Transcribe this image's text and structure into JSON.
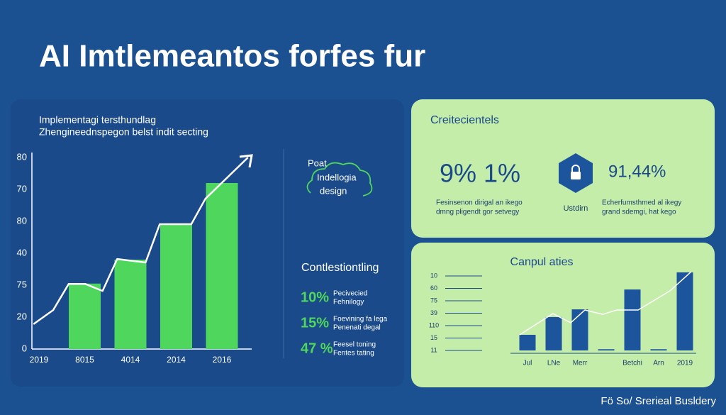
{
  "title": "AI Imtlemeantos forfes fur",
  "chart_data": [
    {
      "type": "bar",
      "title": "Implementagi tersthundlag",
      "subtitle": "Zhengineednspegon belst indit secting",
      "categories": [
        "2019",
        "8015",
        "4014",
        "2014",
        "2016"
      ],
      "ylim": [
        0,
        6
      ],
      "yticks": [
        0,
        {
          "value": 1,
          "label": "20"
        },
        {
          "value": 2,
          "label": "75"
        },
        {
          "value": 3,
          "label": "40"
        },
        {
          "value": 4,
          "label": "80"
        },
        {
          "value": 5,
          "label": "70"
        },
        {
          "value": 6,
          "label": "80"
        }
      ],
      "xlim": [
        0,
        5
      ],
      "grid": false,
      "series": [
        {
          "color": "#4fd65c",
          "values": [
            null,
            2.05,
            2.8,
            3.9,
            5.2
          ]
        },
        {
          "type": "line",
          "color": "#ffffff",
          "x": [
            0.38,
            0.81,
            1.15,
            1.51,
            1.89,
            2.21,
            2.83,
            3.14,
            3.83,
            4.14,
            5.07
          ],
          "values": [
            0.78,
            1.22,
            2.04,
            2.04,
            1.82,
            2.82,
            2.71,
            3.91,
            3.91,
            4.71,
            6.0
          ]
        }
      ]
    },
    {
      "type": "bar",
      "title": "Canpul aties",
      "categories": [
        "Jul",
        "LNe",
        "Merr",
        null,
        "Betchi",
        "Arn",
        "2019"
      ],
      "ylim": [
        -0.25,
        6.5
      ],
      "yticks": [
        {
          "value": 0,
          "label": "11"
        },
        {
          "value": 1,
          "label": "15"
        },
        {
          "value": 2,
          "label": "110"
        },
        {
          "value": 3,
          "label": "39"
        },
        {
          "value": 4,
          "label": "75"
        },
        {
          "value": 5,
          "label": "60"
        },
        {
          "value": 6,
          "label": "10"
        }
      ],
      "xlim": [
        0,
        7
      ],
      "grid": true,
      "series": [
        {
          "color": "#1d559c",
          "values": [
            1.26,
            2.69,
            3.31,
            0.1,
            4.91,
            0.1,
            6.29
          ]
        },
        {
          "type": "line",
          "color": "#ffffff",
          "x": [
            0.2,
            1.47,
            2.15,
            2.69,
            3.37,
            3.91,
            4.72,
            5.93,
            6.74
          ],
          "values": [
            1.26,
            2.97,
            2.23,
            3.26,
            2.91,
            3.26,
            3.26,
            4.8,
            6.34
          ]
        }
      ]
    }
  ],
  "concept": {
    "lines": [
      "Poat",
      "Indellogia",
      "design"
    ]
  },
  "contest": {
    "heading": "Contlestiontling",
    "stats": [
      {
        "value": "10%",
        "lines": [
          "Pecivecied",
          "Fehnilogy"
        ]
      },
      {
        "value": "15%",
        "lines": [
          "Foevining fa lega",
          "Penenati degal"
        ]
      },
      {
        "value": "47 %",
        "lines": [
          "Feesel toning",
          "Fentes tating"
        ]
      }
    ]
  },
  "card": {
    "heading": "Creitecientels",
    "left_value": "9% 1%",
    "left_lines": [
      "Fesinsenon dirigal an ikego",
      "dmng pligendt gor setvegy"
    ],
    "icon_label": "Ustdirn",
    "right_value": "91,44%",
    "right_lines": [
      "Echerfumsthmed al ikegy",
      "grand sdemgi, hat kego"
    ]
  },
  "footer": "Fö So/ Srerieal Busldery"
}
